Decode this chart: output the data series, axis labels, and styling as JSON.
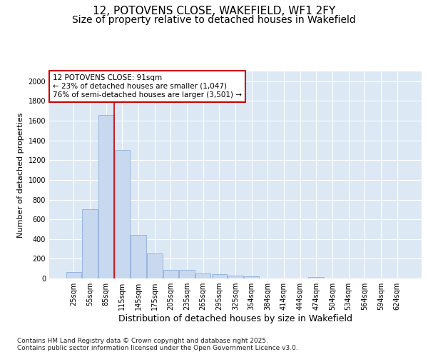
{
  "title_line1": "12, POTOVENS CLOSE, WAKEFIELD, WF1 2FY",
  "title_line2": "Size of property relative to detached houses in Wakefield",
  "xlabel": "Distribution of detached houses by size in Wakefield",
  "ylabel": "Number of detached properties",
  "categories": [
    "25sqm",
    "55sqm",
    "85sqm",
    "115sqm",
    "145sqm",
    "175sqm",
    "205sqm",
    "235sqm",
    "265sqm",
    "295sqm",
    "325sqm",
    "354sqm",
    "384sqm",
    "414sqm",
    "444sqm",
    "474sqm",
    "504sqm",
    "534sqm",
    "564sqm",
    "594sqm",
    "624sqm"
  ],
  "values": [
    65,
    700,
    1660,
    1305,
    440,
    255,
    88,
    88,
    50,
    45,
    30,
    25,
    0,
    0,
    0,
    18,
    0,
    0,
    0,
    0,
    0
  ],
  "bar_color": "#c8d8ef",
  "bar_edge_color": "#8fb0d8",
  "vline_x_index": 2,
  "vline_color": "#cc0000",
  "annotation_box_text": "12 POTOVENS CLOSE: 91sqm\n← 23% of detached houses are smaller (1,047)\n76% of semi-detached houses are larger (3,501) →",
  "annotation_box_color": "#cc0000",
  "annotation_box_bg": "#ffffff",
  "ylim": [
    0,
    2100
  ],
  "yticks": [
    0,
    200,
    400,
    600,
    800,
    1000,
    1200,
    1400,
    1600,
    1800,
    2000
  ],
  "plot_bg_color": "#dde8f5",
  "grid_color": "#ffffff",
  "fig_bg_color": "#ffffff",
  "footer_text": "Contains HM Land Registry data © Crown copyright and database right 2025.\nContains public sector information licensed under the Open Government Licence v3.0.",
  "title_fontsize": 11,
  "subtitle_fontsize": 10,
  "xlabel_fontsize": 9,
  "ylabel_fontsize": 8,
  "tick_fontsize": 7,
  "ann_fontsize": 7.5,
  "footer_fontsize": 6.5
}
